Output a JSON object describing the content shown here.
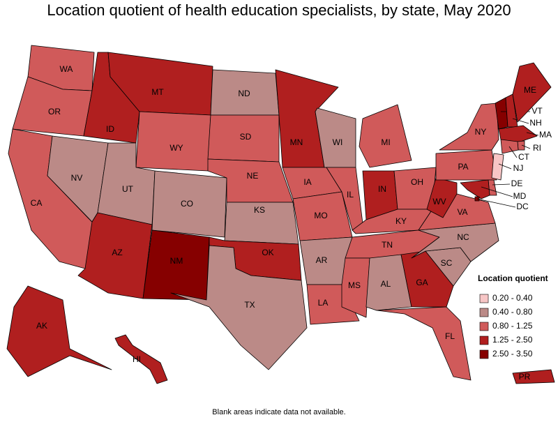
{
  "map": {
    "title": "Location quotient of health education specialists, by state, May 2020",
    "legend": {
      "title": "Location quotient",
      "items": [
        {
          "label": "0.20 - 0.40",
          "color": "#f7c6c6"
        },
        {
          "label": "0.40 - 0.80",
          "color": "#bb8a87"
        },
        {
          "label": "0.80 - 1.25",
          "color": "#d05a5a"
        },
        {
          "label": "1.25 - 2.50",
          "color": "#b01f1f"
        },
        {
          "label": "2.50 - 3.50",
          "color": "#860000"
        }
      ]
    },
    "regions": [
      {
        "label": "WA",
        "class": 2
      },
      {
        "label": "OR",
        "class": 2
      },
      {
        "label": "CA",
        "class": 2
      },
      {
        "label": "NV",
        "class": 1
      },
      {
        "label": "ID",
        "class": 3
      },
      {
        "label": "MT",
        "class": 3
      },
      {
        "label": "WY",
        "class": 2
      },
      {
        "label": "UT",
        "class": 1
      },
      {
        "label": "AZ",
        "class": 3
      },
      {
        "label": "CO",
        "class": 1
      },
      {
        "label": "NM",
        "class": 4
      },
      {
        "label": "ND",
        "class": 1
      },
      {
        "label": "SD",
        "class": 2
      },
      {
        "label": "NE",
        "class": 2
      },
      {
        "label": "KS",
        "class": 1
      },
      {
        "label": "OK",
        "class": 3
      },
      {
        "label": "TX",
        "class": 1
      },
      {
        "label": "MN",
        "class": 3
      },
      {
        "label": "IA",
        "class": 2
      },
      {
        "label": "MO",
        "class": 2
      },
      {
        "label": "AR",
        "class": 1
      },
      {
        "label": "LA",
        "class": 2
      },
      {
        "label": "WI",
        "class": 1
      },
      {
        "label": "IL",
        "class": 2
      },
      {
        "label": "MI",
        "class": 2
      },
      {
        "label": "IN",
        "class": 3
      },
      {
        "label": "OH",
        "class": 2
      },
      {
        "label": "KY",
        "class": 2
      },
      {
        "label": "TN",
        "class": 2
      },
      {
        "label": "MS",
        "class": 2
      },
      {
        "label": "AL",
        "class": 1
      },
      {
        "label": "GA",
        "class": 3
      },
      {
        "label": "FL",
        "class": 2
      },
      {
        "label": "SC",
        "class": 1
      },
      {
        "label": "NC",
        "class": 1
      },
      {
        "label": "VA",
        "class": 2
      },
      {
        "label": "WV",
        "class": 3
      },
      {
        "label": "PA",
        "class": 2
      },
      {
        "label": "NY",
        "class": 2
      },
      {
        "label": "VT",
        "class": 4
      },
      {
        "label": "NH",
        "class": 3
      },
      {
        "label": "ME",
        "class": 3
      },
      {
        "label": "MA",
        "class": 3
      },
      {
        "label": "RI",
        "class": 2
      },
      {
        "label": "CT",
        "class": 2
      },
      {
        "label": "NJ",
        "class": 0
      },
      {
        "label": "DE",
        "class": 2
      },
      {
        "label": "MD",
        "class": 3
      },
      {
        "label": "DC",
        "class": 4
      },
      {
        "label": "AK",
        "class": 3
      },
      {
        "label": "HI",
        "class": 3
      },
      {
        "label": "PR",
        "class": 3
      }
    ],
    "note": "Blank areas indicate data not available."
  }
}
